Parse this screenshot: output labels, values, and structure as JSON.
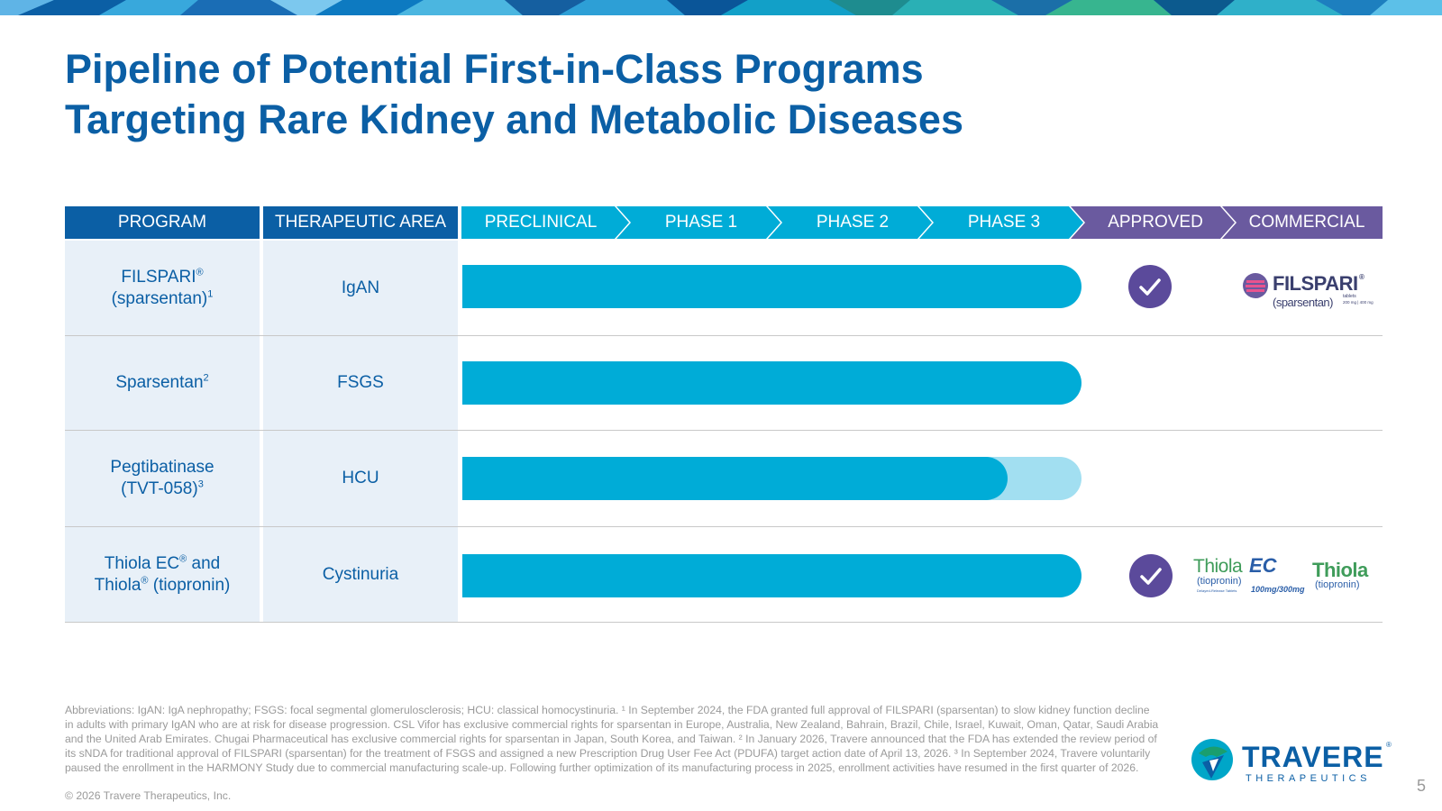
{
  "slide": {
    "title_line1": "Pipeline of Potential First-in-Class Programs",
    "title_line2": "Targeting Rare Kidney and Metabolic Diseases",
    "page_number": "5"
  },
  "colors": {
    "title": "#0b5fa5",
    "header_blue": "#0b5fa5",
    "stage_cyan": "#00acd7",
    "stage_purple": "#6a5a9f",
    "bar": "#00acd7",
    "bar_light": "#a2dff1",
    "check": "#5b4a9b",
    "row_bg": "#e8f0f8"
  },
  "table": {
    "headers": {
      "program": "PROGRAM",
      "area": "THERAPEUTIC AREA",
      "stages": [
        "PRECLINICAL",
        "PHASE 1",
        "PHASE 2",
        "PHASE 3",
        "APPROVED",
        "COMMERCIAL"
      ]
    },
    "rows": [
      {
        "program_name": "FILSPARI",
        "program_name_sup": "®",
        "program_line2": "(sparsentan)",
        "program_line2_sup": "1",
        "area": "IgAN",
        "progress": 1.0,
        "approved": true,
        "commercial_logo": "filspari-logo"
      },
      {
        "program_name": "Sparsentan",
        "program_name_sup": "2",
        "program_line2": "",
        "program_line2_sup": "",
        "area": "FSGS",
        "progress": 1.0,
        "approved": false,
        "commercial_logo": ""
      },
      {
        "program_name": "Pegtibatinase",
        "program_name_sup": "",
        "program_line2": "(TVT-058)",
        "program_line2_sup": "3",
        "area": "HCU",
        "progress": 1.0,
        "progress_solid": 0.88,
        "approved": false,
        "commercial_logo": ""
      },
      {
        "program_name": "Thiola EC",
        "program_name_sup": "®",
        "program_name_after": " and",
        "program_line2": "Thiola",
        "program_line2_sup": "®",
        "program_line2_after": " (tiopronin)",
        "area": "Cystinuria",
        "progress": 1.0,
        "approved": true,
        "commercial_logo": "thiola-logos"
      }
    ]
  },
  "logos": {
    "filspari_name": "FILSPARI",
    "filspari_reg": "®",
    "filspari_sub": "(sparsentan)",
    "filspari_tablets": "tablets",
    "filspari_dose": "200 mg | 400 mg",
    "thiola_ec_name": "Thiola",
    "thiola_ec_suffix": "EC",
    "thiola_ec_sub": "(tiopronin)",
    "thiola_ec_small": "Delayed-Release Tablets",
    "thiola_ec_doses": "100mg/300mg",
    "thiola_name": "Thiola",
    "thiola_sub": "(tiopronin)",
    "travere_name": "TRAVERE",
    "travere_reg": "®",
    "travere_sub": "THERAPEUTICS"
  },
  "footnote": {
    "text": "Abbreviations: IgAN: IgA nephropathy; FSGS: focal segmental glomerulosclerosis; HCU: classical homocystinuria. ¹ In September 2024, the FDA granted full approval of FILSPARI (sparsentan) to slow kidney function decline in adults with primary IgAN who are at risk for disease progression. CSL Vifor has exclusive commercial rights for sparsentan in Europe, Australia, New Zealand, Bahrain, Brazil, Chile, Israel, Kuwait, Oman, Qatar, Saudi Arabia and the United Arab Emirates. Chugai Pharmaceutical has exclusive commercial rights for sparsentan in Japan, South Korea, and Taiwan. ² In January 2026, Travere announced that the FDA has extended the review period of its sNDA for traditional approval of FILSPARI (sparsentan) for the treatment of FSGS and assigned a new Prescription Drug User Fee Act (PDUFA) target action date of April 13, 2026. ³ In September 2024, Travere voluntarily paused the enrollment in the HARMONY Study due to commercial manufacturing scale-up. Following further optimization of its manufacturing process in 2025, enrollment activities have resumed in the first quarter of 2026.",
    "copyright": "© 2026 Travere Therapeutics, Inc."
  }
}
